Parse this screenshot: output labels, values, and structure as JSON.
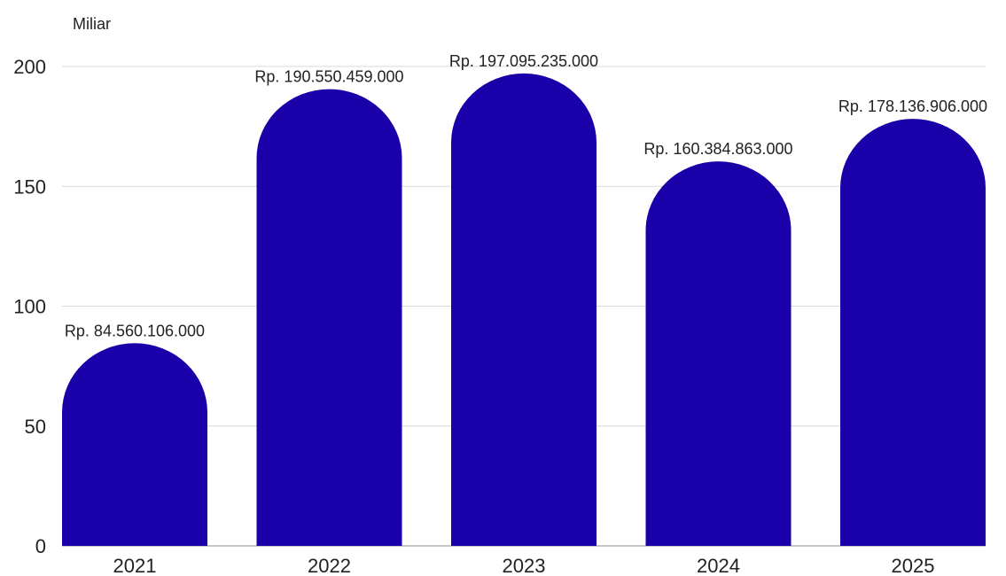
{
  "chart_data": {
    "type": "bar",
    "unit_label": "Miliar",
    "categories": [
      "2021",
      "2022",
      "2023",
      "2024",
      "2025"
    ],
    "values": [
      84.560106,
      190.550459,
      197.095235,
      160.384863,
      178.136906
    ],
    "data_labels": [
      "Rp. 84.560.106.000",
      "Rp. 190.550.459.000",
      "Rp. 197.095.235.000",
      "Rp. 160.384.863.000",
      "Rp. 178.136.906.000"
    ],
    "y_ticks": [
      0,
      50,
      100,
      150,
      200
    ],
    "ylim": [
      0,
      200
    ],
    "grid": true,
    "bar_color": "#1a00a8",
    "grid_color": "#d9d9d9",
    "axis_color": "#8c8c8c",
    "bar_shape": "rounded-top"
  }
}
